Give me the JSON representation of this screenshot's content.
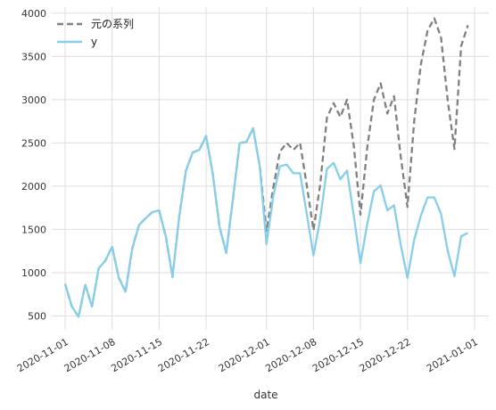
{
  "chart_data": {
    "type": "line",
    "title": "",
    "xlabel": "date",
    "ylabel": "",
    "grid": true,
    "legend_position": "top-left",
    "x_start": "2020-11-01",
    "x_end": "2020-12-31",
    "xlim": [
      "2020-11-01",
      "2021-01-01"
    ],
    "ylim": [
      340,
      4070
    ],
    "x_ticks": [
      "2020-11-01",
      "2020-11-08",
      "2020-11-15",
      "2020-11-22",
      "2020-12-01",
      "2020-12-08",
      "2020-12-15",
      "2020-12-22",
      "2021-01-01"
    ],
    "y_ticks": [
      "500",
      "1000",
      "1500",
      "2000",
      "2500",
      "3000",
      "3500",
      "4000"
    ],
    "series": [
      {
        "name": "元の系列",
        "color": "#808080",
        "style": "dashed",
        "values": [
          870,
          610,
          490,
          860,
          610,
          1050,
          1140,
          1300,
          940,
          780,
          1280,
          1550,
          1630,
          1700,
          1720,
          1420,
          950,
          1650,
          2180,
          2390,
          2420,
          2580,
          2140,
          1530,
          1230,
          1850,
          2500,
          2510,
          2670,
          2230,
          1480,
          1980,
          2400,
          2500,
          2420,
          2500,
          2010,
          1490,
          2020,
          2790,
          2960,
          2800,
          3000,
          2470,
          1670,
          2440,
          3000,
          3190,
          2840,
          3040,
          2340,
          1760,
          2750,
          3410,
          3800,
          3940,
          3720,
          2990,
          2430,
          3620,
          3860
        ]
      },
      {
        "name": "y",
        "color": "#87ceeb",
        "style": "solid",
        "values": [
          870,
          610,
          490,
          860,
          610,
          1050,
          1140,
          1300,
          940,
          780,
          1280,
          1550,
          1630,
          1700,
          1720,
          1420,
          950,
          1650,
          2180,
          2390,
          2420,
          2580,
          2140,
          1530,
          1230,
          1850,
          2500,
          2510,
          2670,
          2230,
          1330,
          1880,
          2230,
          2250,
          2150,
          2150,
          1680,
          1200,
          1620,
          2200,
          2270,
          2080,
          2180,
          1660,
          1110,
          1560,
          1940,
          2010,
          1720,
          1780,
          1320,
          940,
          1380,
          1660,
          1870,
          1870,
          1680,
          1250,
          960,
          1420,
          1460
        ]
      }
    ]
  }
}
